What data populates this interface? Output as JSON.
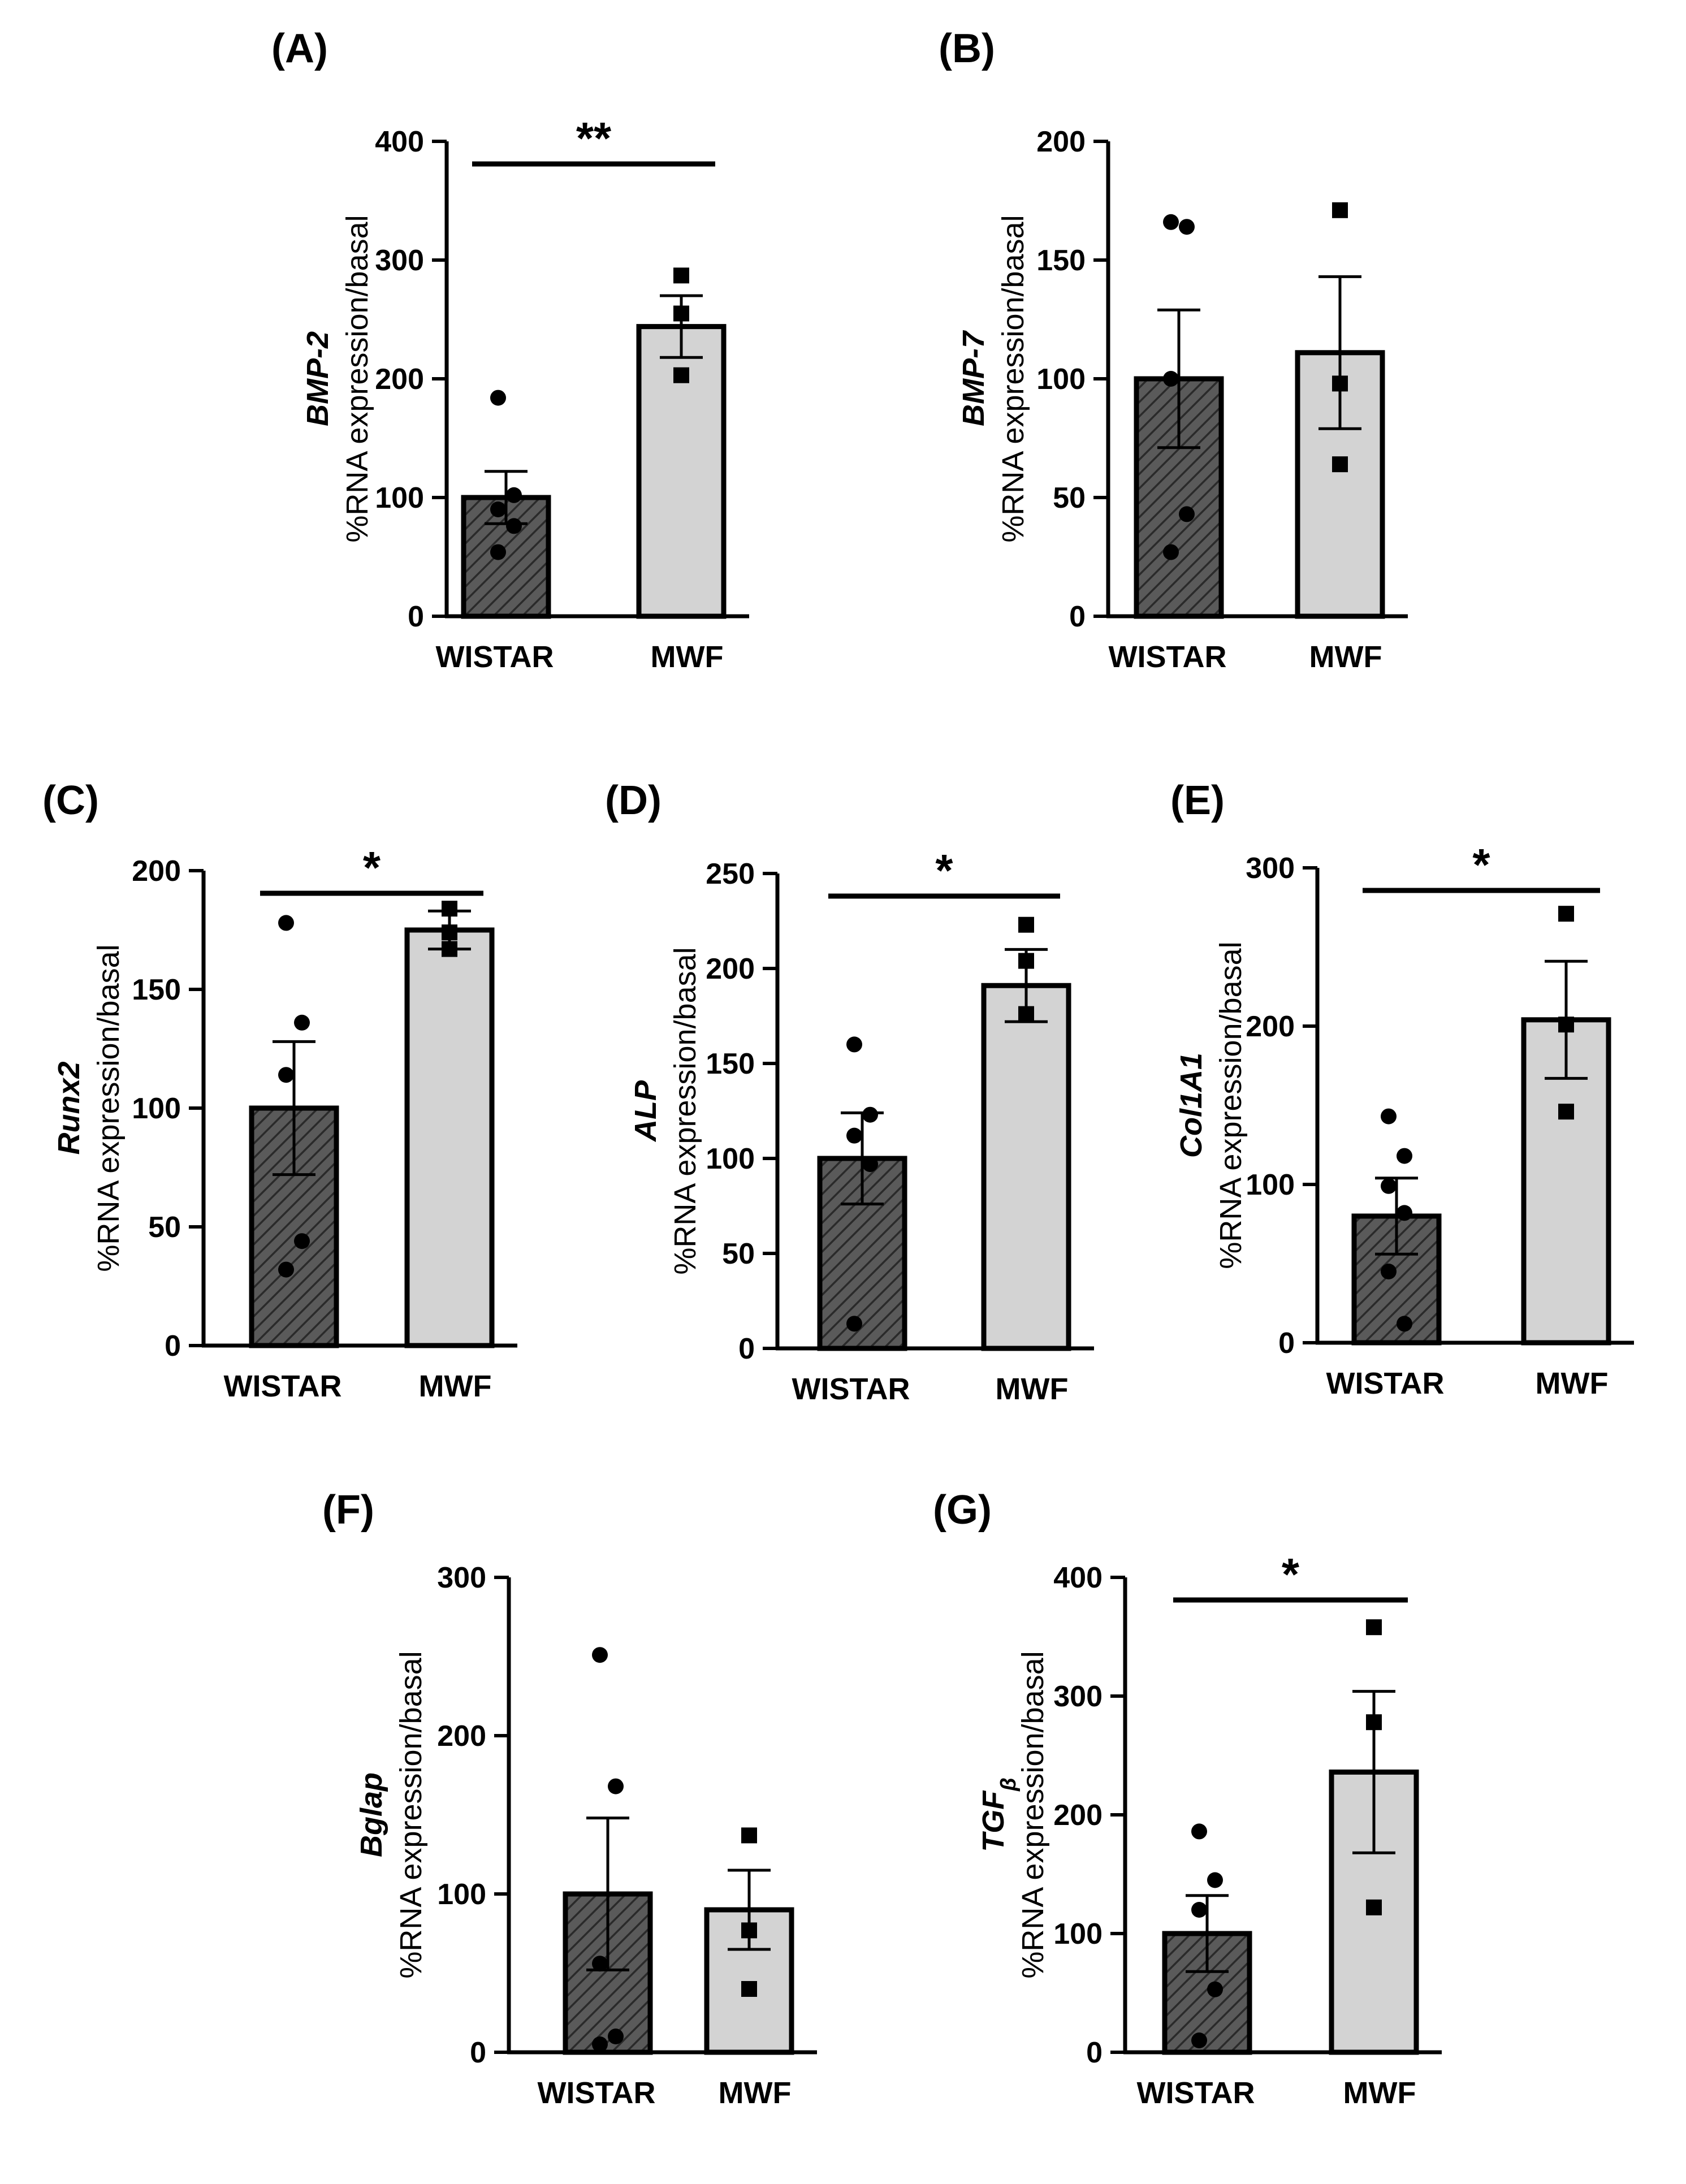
{
  "figure": {
    "fill_colors": {
      "wistar": "#555555",
      "mwf": "#d3d3d3",
      "stroke": "#000000"
    }
  },
  "chart_data": [
    {
      "panel": "(A)",
      "type": "bar",
      "categories": [
        "WISTAR",
        "MWF"
      ],
      "values": [
        100,
        244
      ],
      "error_sem": [
        22,
        26
      ],
      "points": [
        [
          184,
          102,
          90,
          76,
          54
        ],
        [
          287,
          255,
          203
        ]
      ],
      "ylim": [
        0,
        400
      ],
      "yticks": [
        0,
        100,
        200,
        300,
        400
      ],
      "ylabel_gene": "BMP-2",
      "ylabel": "%RNA expression/basal",
      "significance": "**"
    },
    {
      "panel": "(B)",
      "type": "bar",
      "categories": [
        "WISTAR",
        "MWF"
      ],
      "values": [
        100,
        111
      ],
      "error_sem": [
        29,
        32
      ],
      "points": [
        [
          166,
          164,
          100,
          43,
          27
        ],
        [
          171,
          98,
          64
        ]
      ],
      "ylim": [
        0,
        200
      ],
      "yticks": [
        0,
        50,
        100,
        150,
        200
      ],
      "ylabel_gene": "BMP-7",
      "ylabel": "%RNA expression/basal",
      "significance": ""
    },
    {
      "panel": "(C)",
      "type": "bar",
      "categories": [
        "WISTAR",
        "MWF"
      ],
      "values": [
        100,
        175
      ],
      "error_sem": [
        28,
        8
      ],
      "points": [
        [
          178,
          136,
          114,
          44,
          32
        ],
        [
          184,
          174,
          167
        ]
      ],
      "ylim": [
        0,
        200
      ],
      "yticks": [
        0,
        50,
        100,
        150,
        200
      ],
      "ylabel_gene": "Runx2",
      "ylabel": "%RNA expression/basal",
      "significance": "*"
    },
    {
      "panel": "(D)",
      "type": "bar",
      "categories": [
        "WISTAR",
        "MWF"
      ],
      "values": [
        100,
        191
      ],
      "error_sem": [
        24,
        19
      ],
      "points": [
        [
          160,
          123,
          112,
          97,
          13
        ],
        [
          223,
          204,
          176
        ]
      ],
      "ylim": [
        0,
        250
      ],
      "yticks": [
        0,
        50,
        100,
        150,
        200,
        250
      ],
      "ylabel_gene": "ALP",
      "ylabel": "%RNA expression/basal",
      "significance": "*"
    },
    {
      "panel": "(E)",
      "type": "bar",
      "categories": [
        "WISTAR",
        "MWF"
      ],
      "values": [
        80,
        204
      ],
      "error_sem": [
        24,
        37
      ],
      "points": [
        [
          143,
          118,
          99,
          82,
          45,
          12
        ],
        [
          271,
          201,
          146
        ]
      ],
      "ylim": [
        0,
        300
      ],
      "yticks": [
        0,
        100,
        200,
        300
      ],
      "ylabel_gene": "Col1A1",
      "ylabel": "%RNA expression/basal",
      "significance": "*"
    },
    {
      "panel": "(F)",
      "type": "bar",
      "categories": [
        "WISTAR",
        "MWF"
      ],
      "values": [
        100,
        90
      ],
      "error_sem": [
        48,
        25
      ],
      "points": [
        [
          251,
          168,
          56,
          10,
          5
        ],
        [
          137,
          77,
          40
        ]
      ],
      "ylim": [
        0,
        300
      ],
      "yticks": [
        0,
        100,
        200,
        300
      ],
      "ylabel_gene": "Bglap",
      "ylabel": "%RNA expression/basal",
      "significance": ""
    },
    {
      "panel": "(G)",
      "type": "bar",
      "categories": [
        "WISTAR",
        "MWF"
      ],
      "values": [
        100,
        236
      ],
      "error_sem": [
        32,
        68
      ],
      "points": [
        [
          186,
          145,
          120,
          53,
          10
        ],
        [
          358,
          278,
          122
        ]
      ],
      "ylim": [
        0,
        400
      ],
      "yticks": [
        0,
        100,
        200,
        300,
        400
      ],
      "ylabel_gene": "TGF",
      "ylabel_gene_sub": "β",
      "ylabel": "%RNA expression/basal",
      "significance": "*"
    }
  ]
}
